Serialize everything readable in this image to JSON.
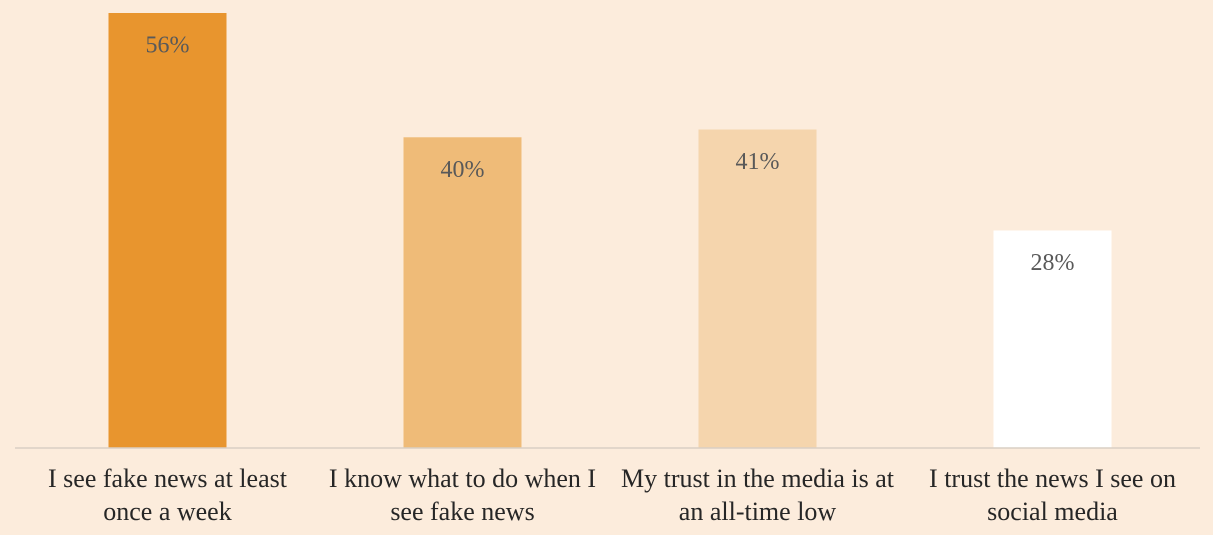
{
  "chart_data": {
    "type": "bar",
    "categories": [
      "I see fake news at least once a week",
      "I know what to do when I see fake news",
      "My trust in the media is at an all-time low",
      "I trust the news I see on social media"
    ],
    "values": [
      56,
      40,
      41,
      28
    ],
    "value_labels": [
      "56%",
      "40%",
      "41%",
      "28%"
    ],
    "colors": [
      "#e8952e",
      "#efbb78",
      "#f5d5ad",
      "#ffffff"
    ],
    "ylim": [
      0,
      56
    ]
  }
}
